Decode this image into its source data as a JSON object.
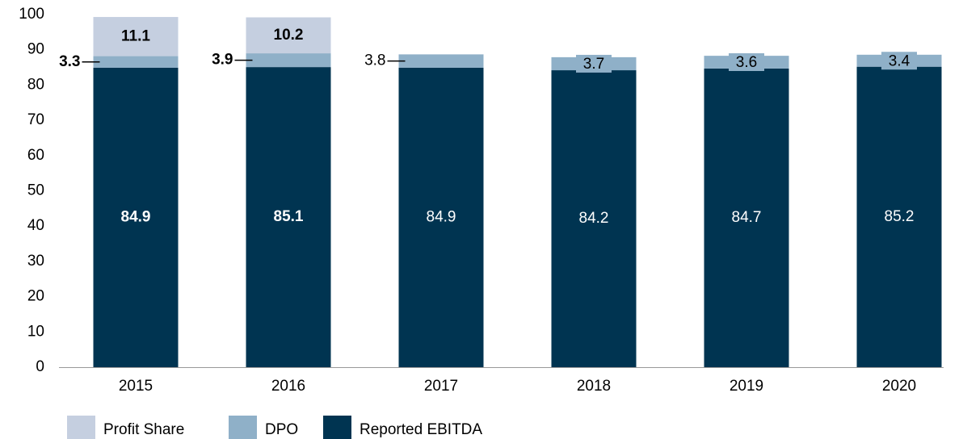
{
  "chart_data": {
    "type": "stacked_bar",
    "categories": [
      "2015",
      "2016",
      "2017",
      "2018",
      "2019",
      "2020"
    ],
    "series": [
      {
        "name": "Reported EBITDA",
        "color": "#003451",
        "values": [
          84.9,
          85.1,
          84.9,
          84.2,
          84.7,
          85.2
        ]
      },
      {
        "name": "DPO",
        "color": "#8fb0c8",
        "values": [
          3.3,
          3.9,
          3.8,
          3.7,
          3.6,
          3.4
        ]
      },
      {
        "name": "Profit Share",
        "color": "#c5cfe0",
        "values": [
          11.1,
          10.2,
          null,
          null,
          null,
          null
        ]
      }
    ],
    "ylim": [
      0,
      100
    ],
    "yticks": [
      0,
      10,
      20,
      30,
      40,
      50,
      60,
      70,
      80,
      90,
      100
    ],
    "grid": false,
    "legend": "bottom"
  }
}
